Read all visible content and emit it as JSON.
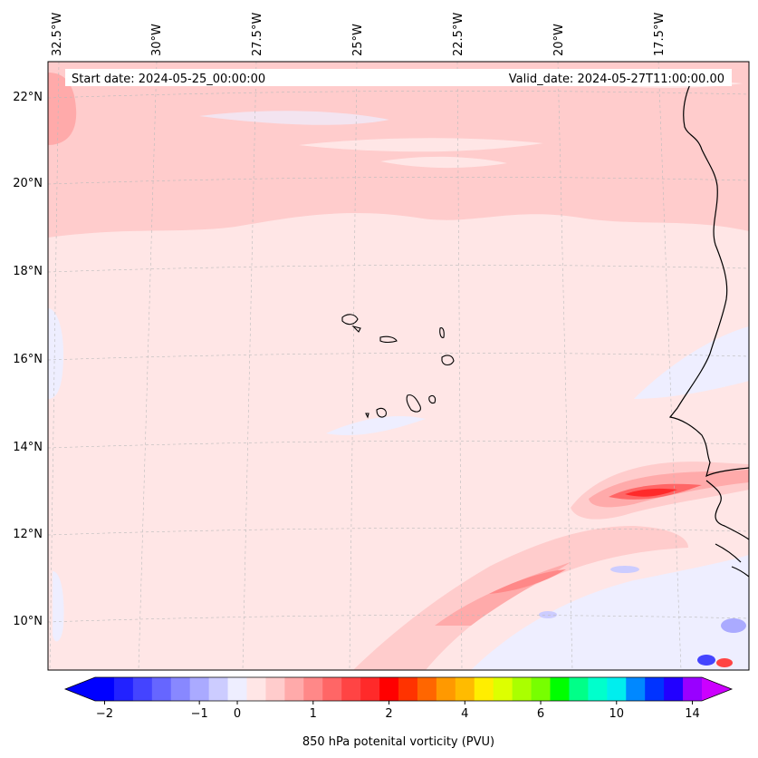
{
  "header": {
    "start_date": "Start date: 2024-05-25_00:00:00",
    "valid_date": "Valid_date: 2024-05-27T11:00:00.00"
  },
  "longitude_labels": [
    "32.5°W",
    "30°W",
    "27.5°W",
    "25°W",
    "22.5°W",
    "20°W",
    "17.5°W"
  ],
  "latitude_labels": [
    "22°N",
    "20°N",
    "18°N",
    "16°N",
    "14°N",
    "12°N",
    "10°N"
  ],
  "colorbar": {
    "ticks": [
      "−2",
      "−1",
      "0",
      "1",
      "2",
      "4",
      "6",
      "10",
      "14"
    ],
    "label": "850 hPa potenital vorticity (PVU)",
    "colors": [
      "#0000ff",
      "#2222ff",
      "#4444ff",
      "#6666ff",
      "#8888ff",
      "#aaaaff",
      "#ccccff",
      "#eeeeff",
      "#ffe6e6",
      "#ffcccc",
      "#ffaaaa",
      "#ff8888",
      "#ff6666",
      "#ff4444",
      "#ff2a2a",
      "#ff0000",
      "#ff3300",
      "#ff6600",
      "#ff9900",
      "#ffbb00",
      "#ffee00",
      "#ddff00",
      "#aaff00",
      "#77ff00",
      "#00ff00",
      "#00ff88",
      "#00ffcc",
      "#00eeee",
      "#0088ff",
      "#0033ff",
      "#2200ff",
      "#9900ff"
    ],
    "extend_low_color": "#0000ff",
    "extend_high_color": "#cc00ff"
  }
}
